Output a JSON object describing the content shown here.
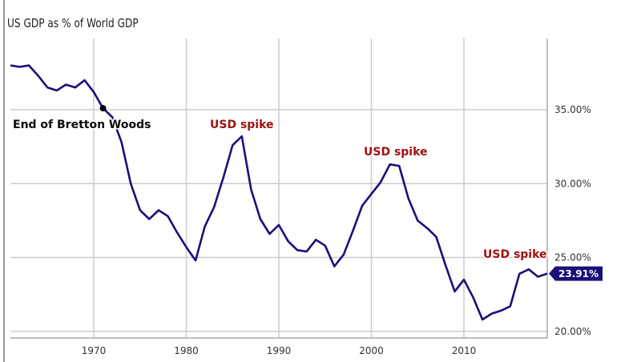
{
  "chart_data": {
    "type": "line",
    "title": "US GDP as % of World GDP",
    "xlabel": "",
    "ylabel": "",
    "x": [
      1961,
      1962,
      1963,
      1964,
      1965,
      1966,
      1967,
      1968,
      1969,
      1970,
      1971,
      1972,
      1973,
      1974,
      1975,
      1976,
      1977,
      1978,
      1979,
      1980,
      1981,
      1982,
      1983,
      1984,
      1985,
      1986,
      1987,
      1988,
      1989,
      1990,
      1991,
      1992,
      1993,
      1994,
      1995,
      1996,
      1997,
      1998,
      1999,
      2000,
      2001,
      2002,
      2003,
      2004,
      2005,
      2006,
      2007,
      2008,
      2009,
      2010,
      2011,
      2012,
      2013,
      2014,
      2015,
      2016,
      2017,
      2018,
      2019
    ],
    "series": [
      {
        "values": [
          38.0,
          37.9,
          38.0,
          37.3,
          36.5,
          36.3,
          36.7,
          36.5,
          37.0,
          36.2,
          35.1,
          34.5,
          32.8,
          30.0,
          28.2,
          27.6,
          28.2,
          27.8,
          26.7,
          25.7,
          24.8,
          27.1,
          28.4,
          30.4,
          32.6,
          33.2,
          29.6,
          27.6,
          26.6,
          27.2,
          26.1,
          25.5,
          25.4,
          26.2,
          25.8,
          24.4,
          25.2,
          26.8,
          28.5,
          29.3,
          30.1,
          31.3,
          31.2,
          29.0,
          27.5,
          27.0,
          26.4,
          24.5,
          22.7,
          23.5,
          22.3,
          20.8,
          21.2,
          21.4,
          21.7,
          23.9,
          24.2,
          23.7,
          23.91
        ],
        "color": "#1a0f7a"
      }
    ],
    "xlim": [
      1961,
      2019
    ],
    "ylim": [
      19.5,
      39.5
    ],
    "x_ticks": [
      "1970",
      "1980",
      "1990",
      "2000",
      "2010"
    ],
    "x_tick_values": [
      1970,
      1980,
      1990,
      2000,
      2010
    ],
    "y_ticks": [
      "35.00%",
      "30.00%",
      "25.00%",
      "20.00%"
    ],
    "y_tick_values": [
      35,
      30,
      25,
      20
    ],
    "y_axis_side": "right",
    "grid": true,
    "last_value_label": "23.91%",
    "marker": {
      "x": 1971,
      "y": 35.1
    },
    "annotations": [
      {
        "text": "End of Bretton Woods",
        "color": "#0a0a0a"
      },
      {
        "text": "USD spike",
        "color": "#a01010"
      },
      {
        "text": "USD spike",
        "color": "#a01010"
      },
      {
        "text": "USD spike",
        "color": "#a01010"
      }
    ]
  }
}
